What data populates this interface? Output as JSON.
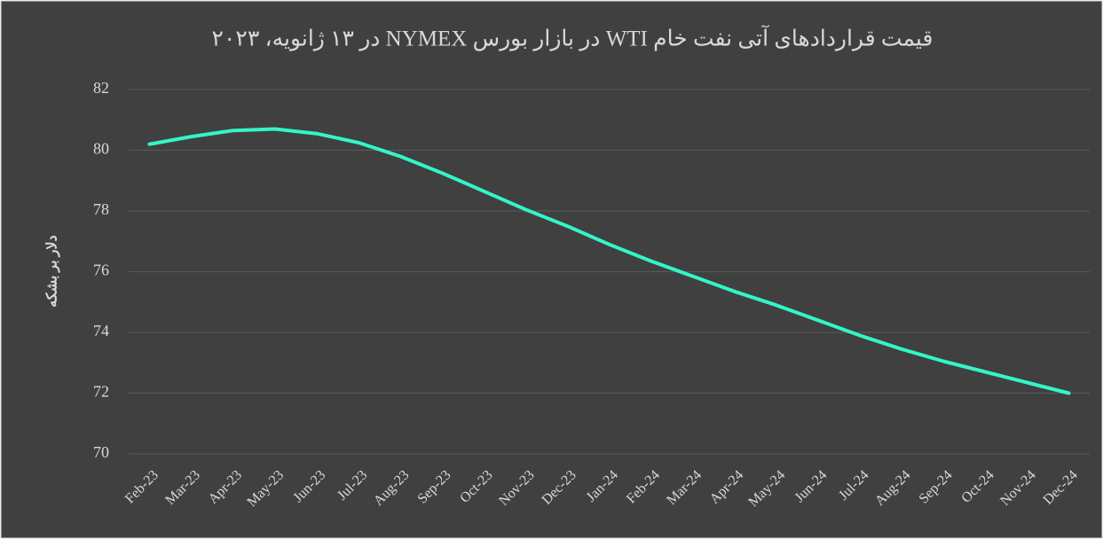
{
  "chart_data": {
    "type": "line",
    "title": "قیمت قراردادهای آتی نفت خام WTI در بازار بورس NYMEX در ۱۳ ژانویه، ۲۰۲۳",
    "y_label": "دلار بر بشکه",
    "categories": [
      "Feb-23",
      "Mar-23",
      "Apr-23",
      "May-23",
      "Jun-23",
      "Jul-23",
      "Aug-23",
      "Sep-23",
      "Oct-23",
      "Nov-23",
      "Dec-23",
      "Jan-24",
      "Feb-24",
      "Mar-24",
      "Apr-24",
      "May-24",
      "Jun-24",
      "Jul-24",
      "Aug-24",
      "Sep-24",
      "Oct-24",
      "Nov-24",
      "Dec-24"
    ],
    "values": [
      80.2,
      80.45,
      80.65,
      80.7,
      80.55,
      80.25,
      79.8,
      79.25,
      78.65,
      78.05,
      77.5,
      76.9,
      76.35,
      75.85,
      75.35,
      74.9,
      74.4,
      73.9,
      73.45,
      73.05,
      72.7,
      72.35,
      72.0
    ],
    "color": "#33f5c9",
    "ylim": [
      70,
      82
    ],
    "yticks": [
      70,
      72,
      74,
      76,
      78,
      80,
      82
    ],
    "grid": true
  }
}
